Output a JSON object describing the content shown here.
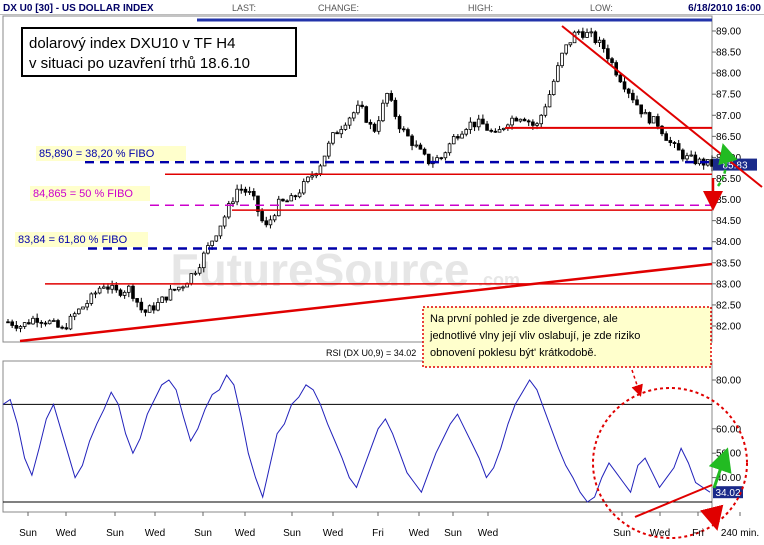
{
  "header": {
    "symbol_title": "DX U0 [30] - US DOLLAR INDEX",
    "last_label": "LAST:",
    "change_label": "CHANGE:",
    "high_label": "HIGH:",
    "low_label": "LOW:",
    "datetime": "6/18/2010 16:00"
  },
  "note_box": {
    "line1": "dolarový index DXU10 v TF H4",
    "line2": "v situaci po uzavření trhů  18.6.10"
  },
  "fibo": {
    "level_38": "85,890 = 38,20 % FIBO",
    "level_50": "84,865 = 50 % FIBO",
    "level_61": "83,84 = 61,80 % FIBO"
  },
  "comment": {
    "line1": "Na první pohled je zde divergence, ale",
    "line2": "jednotlivé vlny její vliv oslabují, je zde riziko",
    "line3": "obnovení poklesu být' krátkodobě."
  },
  "watermark": "FutureSource",
  "watermark_suffix": ".com",
  "colors": {
    "accent_red": "#e00000",
    "fibo_blue": "#0000aa",
    "fibo_magenta": "#cc00cc",
    "price": "#000000",
    "rsi_line": "#2222bb",
    "green_arrow": "#22bb22",
    "label_bg": "#ffffcc"
  },
  "chart_data": [
    {
      "type": "candlestick",
      "title": "DX U0 [30] - US DOLLAR INDEX",
      "ylim": [
        81.7,
        89.4
      ],
      "y_ticks": [
        "82.00",
        "82.50",
        "83.00",
        "83.50",
        "84.00",
        "84.50",
        "85.00",
        "85.50",
        "86.00",
        "86.50",
        "87.00",
        "87.50",
        "88.00",
        "88.50",
        "89.00"
      ],
      "last_price_label": "85.83",
      "fibo_levels": [
        85.89,
        84.865,
        83.84
      ],
      "horizontal_levels": [
        86.7,
        85.6,
        84.75,
        83.0
      ],
      "series": [
        {
          "values": [
            82.1,
            82.0,
            82.2,
            82.1,
            81.9,
            82.3,
            82.6,
            83.0,
            82.8,
            82.9,
            82.3,
            82.5,
            82.8,
            83.0,
            83.4,
            84.0,
            84.6,
            85.3,
            85.1,
            84.3,
            84.9,
            85.0,
            85.4,
            85.8,
            86.5,
            86.9,
            87.2,
            86.6,
            87.5,
            86.7,
            86.3,
            85.9,
            86.0,
            86.5,
            86.8,
            86.8,
            86.5,
            86.9,
            87.0,
            86.7,
            87.5,
            88.5,
            89.0,
            88.9,
            88.6,
            88.0,
            87.5,
            87.0,
            86.8,
            86.3,
            86.0,
            85.9,
            85.83
          ]
        }
      ]
    },
    {
      "type": "line",
      "title": "RSI (DX U0,9) = 34.02",
      "ylim": [
        20,
        90
      ],
      "y_ticks": [
        "40.00",
        "50.00",
        "60.00",
        "80.00"
      ],
      "reference_lines": [
        70,
        30
      ],
      "last_value_label": "34.02",
      "x_tick_labels": [
        "Sun",
        "Wed",
        "Sun",
        "Wed",
        "Sun",
        "Wed",
        "Sun",
        "Wed",
        "Fri",
        "Wed",
        "Sun",
        "Wed",
        "Sun",
        "Wed",
        "Fri",
        "240 min."
      ],
      "series": [
        {
          "name": "RSI (DX U0,9)",
          "values": [
            70,
            72,
            62,
            48,
            41,
            52,
            64,
            70,
            60,
            50,
            40,
            45,
            55,
            62,
            68,
            75,
            70,
            58,
            50,
            56,
            66,
            72,
            78,
            80,
            76,
            65,
            55,
            60,
            68,
            74,
            76,
            82,
            78,
            65,
            50,
            40,
            32,
            45,
            58,
            62,
            70,
            73,
            78,
            76,
            70,
            62,
            55,
            48,
            40,
            36,
            44,
            52,
            60,
            64,
            58,
            50,
            42,
            38,
            34,
            42,
            50,
            56,
            62,
            66,
            60,
            54,
            48,
            40,
            44,
            52,
            62,
            70,
            75,
            80,
            76,
            68,
            60,
            52,
            45,
            40,
            34,
            30,
            32,
            40,
            46,
            42,
            38,
            34,
            45,
            48,
            42,
            36,
            40,
            44,
            52,
            46,
            38,
            36,
            34.02
          ]
        }
      ]
    }
  ]
}
